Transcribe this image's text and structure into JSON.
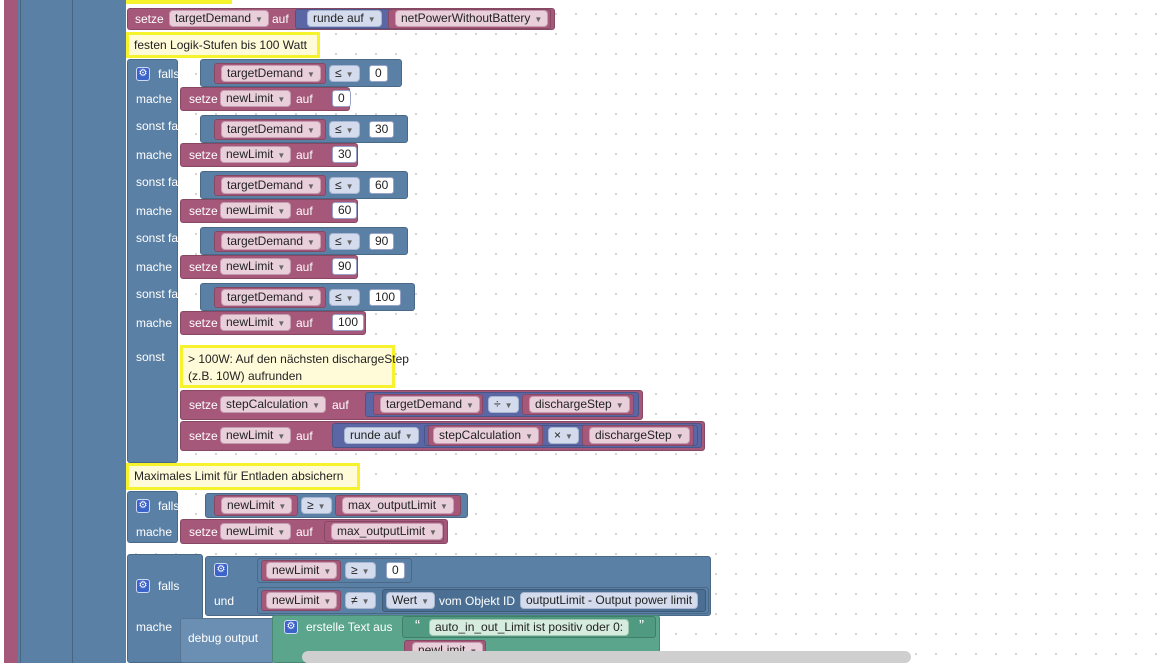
{
  "colors": {
    "variables": "#a5587a",
    "logic": "#5b80a5",
    "math": "#5b67a5",
    "text": "#5ba58c",
    "comment_border": "#f6f22b"
  },
  "kw": {
    "setze": "setze",
    "auf": "auf",
    "falls": "falls",
    "mache": "mache",
    "sonst_falls": "sonst falls",
    "sonst": "sonst",
    "und": "und",
    "debug_output": "debug output",
    "vom_objekt_id": "vom Objekt ID",
    "erstelle_text_aus": "erstelle Text aus",
    "round_up": "runde auf",
    "wert": "Wert"
  },
  "ops": {
    "le": "≤",
    "ge": "≥",
    "ne": "≠",
    "div": "÷",
    "mul": "×",
    "quote_open": "“",
    "quote_close": "”"
  },
  "vars": {
    "targetDemand": "targetDemand",
    "newLimit": "newLimit",
    "netPowerWithoutBattery": "netPowerWithoutBattery",
    "stepCalculation": "stepCalculation",
    "dischargeStep": "dischargeStep",
    "max_outputLimit": "max_outputLimit"
  },
  "comments": {
    "logic_steps": "festen Logik-Stufen bis 100 Watt",
    "over_100_line1": "> 100W: Auf den nächsten dischargeStep",
    "over_100_line2": "(z.B. 10W) aufrunden",
    "max_limit": "Maximales Limit für Entladen absichern"
  },
  "levels": [
    {
      "threshold": "0",
      "value": "0"
    },
    {
      "threshold": "30",
      "value": "30"
    },
    {
      "threshold": "60",
      "value": "60"
    },
    {
      "threshold": "90",
      "value": "90"
    },
    {
      "threshold": "100",
      "value": "100"
    }
  ],
  "last": {
    "zero": "0",
    "object_id": "outputLimit - Output power limit",
    "text_literal": "auto_in_out_Limit ist positiv oder 0:"
  }
}
